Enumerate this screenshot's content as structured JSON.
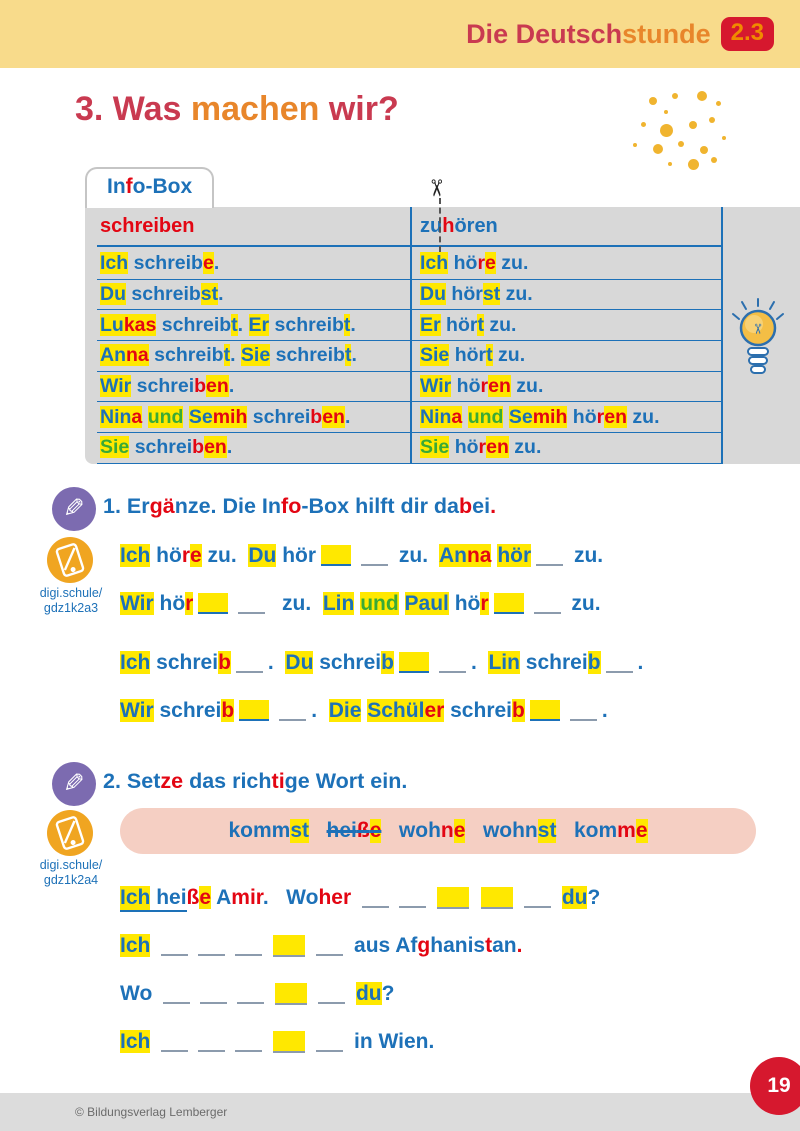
{
  "page": {
    "header": {
      "brand_segments": [
        {
          "t": "Die Deutsch",
          "c": "tr"
        },
        {
          "t": "stunde",
          "c": "to"
        }
      ],
      "badge": "2.3"
    },
    "title_segments": [
      {
        "t": "3. Was ",
        "c": "tr"
      },
      {
        "t": "machen ",
        "c": "to"
      },
      {
        "t": "wir?",
        "c": "tr"
      }
    ],
    "footer": {
      "copyright": "© Bildungsverlag Lemberger",
      "page_number": "19"
    }
  },
  "icons": {
    "scissors_glyph": "✂",
    "pencil_glyph": "✎",
    "lightbulb": "lightbulb-icon",
    "tablet": "tablet-link-icon"
  },
  "colors": {
    "blue": "#1D71B8",
    "red": "#E30613",
    "green": "#3AAA35",
    "yellow": "#FFE800",
    "titleRed": "#C93A50",
    "titleOrange": "#E8862B",
    "band": "#F8DB8B",
    "grayBox": "#D8D8D8",
    "pink": "#F5CFC3",
    "badgeRed": "#D6182E",
    "badgeOrange": "#F08A00",
    "blankLine": "#8C9BAD",
    "footerBar": "#DCDCDC",
    "footerText": "#6B6B6B",
    "dot": "#F0B42F",
    "purple": "#7C6BB0",
    "digiOrange": "#F0A521"
  },
  "infobox": {
    "tab_segments": [
      {
        "t": "In",
        "c": "b"
      },
      {
        "t": "f",
        "c": "r"
      },
      {
        "t": "o-Box",
        "c": "b"
      }
    ],
    "header": {
      "left": [
        {
          "t": "schreiben",
          "c": "r"
        }
      ],
      "right": [
        {
          "t": "zu",
          "c": "b"
        },
        {
          "t": "h",
          "c": "r"
        },
        {
          "t": "ören",
          "c": "b"
        }
      ]
    },
    "rows": [
      {
        "left": [
          {
            "t": "Ich",
            "c": "b",
            "h": 1
          },
          {
            "t": " schreib",
            "c": "b"
          },
          {
            "t": "e",
            "c": "r",
            "h": 1
          },
          {
            "t": ".",
            "c": "b"
          }
        ],
        "right": [
          {
            "t": "Ich",
            "c": "b",
            "h": 1
          },
          {
            "t": " hö",
            "c": "b"
          },
          {
            "t": "r",
            "c": "r"
          },
          {
            "t": "e",
            "c": "r",
            "h": 1
          },
          {
            "t": " zu.",
            "c": "b"
          }
        ]
      },
      {
        "left": [
          {
            "t": "Du",
            "c": "b",
            "h": 1
          },
          {
            "t": " schreib",
            "c": "b"
          },
          {
            "t": "st",
            "c": "b",
            "h": 1
          },
          {
            "t": ".",
            "c": "b"
          }
        ],
        "right": [
          {
            "t": "Du",
            "c": "b",
            "h": 1
          },
          {
            "t": " hör",
            "c": "b"
          },
          {
            "t": "st",
            "c": "b",
            "h": 1
          },
          {
            "t": " zu.",
            "c": "b"
          }
        ]
      },
      {
        "left": [
          {
            "t": "Lu",
            "c": "b",
            "h": 1
          },
          {
            "t": "kas",
            "c": "r",
            "h": 1
          },
          {
            "t": " schreib",
            "c": "b"
          },
          {
            "t": "t",
            "c": "b",
            "h": 1
          },
          {
            "t": ". ",
            "c": "b"
          },
          {
            "t": "Er",
            "c": "b",
            "h": 1
          },
          {
            "t": " schreib",
            "c": "b"
          },
          {
            "t": "t",
            "c": "b",
            "h": 1
          },
          {
            "t": ".",
            "c": "b"
          }
        ],
        "right": [
          {
            "t": "Er",
            "c": "b",
            "h": 1
          },
          {
            "t": " hör",
            "c": "b"
          },
          {
            "t": "t",
            "c": "b",
            "h": 1
          },
          {
            "t": " zu.",
            "c": "b"
          }
        ]
      },
      {
        "left": [
          {
            "t": "An",
            "c": "b",
            "h": 1
          },
          {
            "t": "na",
            "c": "r",
            "h": 1
          },
          {
            "t": " schreib",
            "c": "b"
          },
          {
            "t": "t",
            "c": "b",
            "h": 1
          },
          {
            "t": ". ",
            "c": "b"
          },
          {
            "t": "Sie",
            "c": "b",
            "h": 1
          },
          {
            "t": " schreib",
            "c": "b"
          },
          {
            "t": "t",
            "c": "b",
            "h": 1
          },
          {
            "t": ".",
            "c": "b"
          }
        ],
        "right": [
          {
            "t": "Sie",
            "c": "b",
            "h": 1
          },
          {
            "t": " hör",
            "c": "b"
          },
          {
            "t": "t",
            "c": "b",
            "h": 1
          },
          {
            "t": " zu.",
            "c": "b"
          }
        ]
      },
      {
        "left": [
          {
            "t": "Wir",
            "c": "b",
            "h": 1
          },
          {
            "t": " schrei",
            "c": "b"
          },
          {
            "t": "b",
            "c": "r"
          },
          {
            "t": "en",
            "c": "r",
            "h": 1
          },
          {
            "t": ".",
            "c": "b"
          }
        ],
        "right": [
          {
            "t": "Wir",
            "c": "b",
            "h": 1
          },
          {
            "t": " hö",
            "c": "b"
          },
          {
            "t": "r",
            "c": "r"
          },
          {
            "t": "en",
            "c": "r",
            "h": 1
          },
          {
            "t": " zu.",
            "c": "b"
          }
        ]
      },
      {
        "left": [
          {
            "t": "Nin",
            "c": "b",
            "h": 1
          },
          {
            "t": "a",
            "c": "r",
            "h": 1
          },
          {
            "t": " ",
            "c": "b"
          },
          {
            "t": "und",
            "c": "g",
            "h": 1
          },
          {
            "t": " ",
            "c": "b"
          },
          {
            "t": "Se",
            "c": "b",
            "h": 1
          },
          {
            "t": "mih",
            "c": "r",
            "h": 1
          },
          {
            "t": " schrei",
            "c": "b"
          },
          {
            "t": "b",
            "c": "r"
          },
          {
            "t": "en",
            "c": "r",
            "h": 1
          },
          {
            "t": ".",
            "c": "b"
          }
        ],
        "right": [
          {
            "t": "Nin",
            "c": "b",
            "h": 1
          },
          {
            "t": "a",
            "c": "r",
            "h": 1
          },
          {
            "t": " ",
            "c": "b"
          },
          {
            "t": "und",
            "c": "g",
            "h": 1
          },
          {
            "t": " ",
            "c": "b"
          },
          {
            "t": "Se",
            "c": "b",
            "h": 1
          },
          {
            "t": "mih",
            "c": "r",
            "h": 1
          },
          {
            "t": " hö",
            "c": "b"
          },
          {
            "t": "r",
            "c": "r"
          },
          {
            "t": "en",
            "c": "r",
            "h": 1
          },
          {
            "t": " zu.",
            "c": "b"
          }
        ]
      },
      {
        "left": [
          {
            "t": "Sie",
            "c": "g",
            "h": 1
          },
          {
            "t": " schrei",
            "c": "b"
          },
          {
            "t": "b",
            "c": "r"
          },
          {
            "t": "en",
            "c": "r",
            "h": 1
          },
          {
            "t": ".",
            "c": "b"
          }
        ],
        "right": [
          {
            "t": "Sie",
            "c": "g",
            "h": 1
          },
          {
            "t": " hö",
            "c": "b"
          },
          {
            "t": "r",
            "c": "r"
          },
          {
            "t": "en",
            "c": "r",
            "h": 1
          },
          {
            "t": " zu.",
            "c": "b"
          }
        ]
      }
    ]
  },
  "exercise1": {
    "heading_segments": [
      {
        "t": "1. Er",
        "c": "b"
      },
      {
        "t": "gä",
        "c": "r"
      },
      {
        "t": "nze. Die In",
        "c": "b"
      },
      {
        "t": "fo",
        "c": "r"
      },
      {
        "t": "-Box hilft dir da",
        "c": "b"
      },
      {
        "t": "b",
        "c": "r"
      },
      {
        "t": "ei",
        "c": "b"
      },
      {
        "t": ".",
        "c": "r"
      }
    ],
    "digi_link": {
      "line1": "digi.schule/",
      "line2": "gdz1k2a3"
    },
    "lines": [
      [
        {
          "t": "Ich",
          "c": "b",
          "h": 1
        },
        {
          "t": " hö",
          "c": "b"
        },
        {
          "t": "r",
          "c": "r"
        },
        {
          "t": "e",
          "c": "r",
          "h": 1
        },
        {
          "t": " zu.  ",
          "c": "b"
        },
        {
          "t": "Du",
          "c": "b",
          "h": 1
        },
        {
          "t": " hör",
          "c": "b"
        },
        {
          "bl": 1,
          "h": 1
        },
        {
          "bl": 1
        },
        {
          "t": " zu.  ",
          "c": "b"
        },
        {
          "t": "An",
          "c": "b",
          "h": 1
        },
        {
          "t": "na",
          "c": "r",
          "h": 1
        },
        {
          "t": " ",
          "c": "b"
        },
        {
          "t": "hör",
          "c": "b",
          "h": 1
        },
        {
          "bl": 1
        },
        {
          "t": " zu.",
          "c": "b"
        }
      ],
      [
        {
          "t": "Wir",
          "c": "b",
          "h": 1
        },
        {
          "t": " hö",
          "c": "b"
        },
        {
          "t": "r",
          "c": "r",
          "h": 1
        },
        {
          "bl": 1,
          "h": 1
        },
        {
          "bl": 1
        },
        {
          "t": "  zu.  ",
          "c": "b"
        },
        {
          "t": "Lin",
          "c": "b",
          "h": 1
        },
        {
          "t": " ",
          "c": "b"
        },
        {
          "t": "und",
          "c": "g",
          "h": 1
        },
        {
          "t": " ",
          "c": "b"
        },
        {
          "t": "Paul",
          "c": "b",
          "h": 1
        },
        {
          "t": " hö",
          "c": "b"
        },
        {
          "t": "r",
          "c": "r",
          "h": 1
        },
        {
          "bl": 1,
          "h": 1
        },
        {
          "bl": 1
        },
        {
          "t": " zu.",
          "c": "b"
        }
      ],
      [
        {
          "t": "Ich",
          "c": "b",
          "h": 1
        },
        {
          "t": " schrei",
          "c": "b"
        },
        {
          "t": "b",
          "c": "r",
          "h": 1
        },
        {
          "bl": 1
        },
        {
          "t": ".  ",
          "c": "b"
        },
        {
          "t": "Du",
          "c": "b",
          "h": 1
        },
        {
          "t": " schrei",
          "c": "b"
        },
        {
          "t": "b",
          "c": "b",
          "h": 1
        },
        {
          "bl": 1,
          "h": 1
        },
        {
          "bl": 1
        },
        {
          "t": ".  ",
          "c": "b"
        },
        {
          "t": "Lin",
          "c": "b",
          "h": 1
        },
        {
          "t": " schrei",
          "c": "b"
        },
        {
          "t": "b",
          "c": "b",
          "h": 1
        },
        {
          "bl": 1
        },
        {
          "t": ".",
          "c": "b"
        }
      ],
      [
        {
          "t": "Wir",
          "c": "b",
          "h": 1
        },
        {
          "t": " schrei",
          "c": "b"
        },
        {
          "t": "b",
          "c": "r",
          "h": 1
        },
        {
          "bl": 1,
          "h": 1
        },
        {
          "bl": 1
        },
        {
          "t": ".  ",
          "c": "b"
        },
        {
          "t": "Die",
          "c": "b",
          "h": 1
        },
        {
          "t": " ",
          "c": "b"
        },
        {
          "t": "Schül",
          "c": "b",
          "h": 1
        },
        {
          "t": "er",
          "c": "r",
          "h": 1
        },
        {
          "t": " schrei",
          "c": "b"
        },
        {
          "t": "b",
          "c": "r",
          "h": 1
        },
        {
          "bl": 1,
          "h": 1
        },
        {
          "bl": 1
        },
        {
          "t": ".",
          "c": "b"
        }
      ]
    ]
  },
  "exercise2": {
    "heading_segments": [
      {
        "t": "2. Set",
        "c": "b"
      },
      {
        "t": "ze",
        "c": "r"
      },
      {
        "t": " das rich",
        "c": "b"
      },
      {
        "t": "ti",
        "c": "r"
      },
      {
        "t": "ge Wort ein.",
        "c": "b"
      }
    ],
    "digi_link": {
      "line1": "digi.schule/",
      "line2": "gdz1k2a4"
    },
    "word_bank": [
      {
        "t": "komm",
        "c": "b"
      },
      {
        "t": "st",
        "c": "b",
        "h": 1
      },
      {
        "t": "   ",
        "c": "b"
      },
      {
        "t": "hei",
        "c": "b",
        "s": 1
      },
      {
        "t": "ß",
        "c": "r",
        "s": 1
      },
      {
        "t": "e",
        "c": "r",
        "h": 1,
        "s": 1
      },
      {
        "t": "   ",
        "c": "b"
      },
      {
        "t": "woh",
        "c": "b"
      },
      {
        "t": "n",
        "c": "r"
      },
      {
        "t": "e",
        "c": "r",
        "h": 1
      },
      {
        "t": "   ",
        "c": "b"
      },
      {
        "t": "wohn",
        "c": "b"
      },
      {
        "t": "st",
        "c": "b",
        "h": 1
      },
      {
        "t": "   ",
        "c": "b"
      },
      {
        "t": "kom",
        "c": "b"
      },
      {
        "t": "m",
        "c": "r"
      },
      {
        "t": "e",
        "c": "r",
        "h": 1
      }
    ],
    "lines": [
      [
        {
          "t": "Ich",
          "c": "b",
          "h": 1,
          "u": 1
        },
        {
          "t": " ",
          "c": "b",
          "u": 1
        },
        {
          "t": "hei",
          "c": "b",
          "u": 1
        },
        {
          "t": "ß",
          "c": "r"
        },
        {
          "t": "e",
          "c": "r",
          "h": 1
        },
        {
          "t": " ",
          "c": "b"
        },
        {
          "t": "A",
          "c": "b"
        },
        {
          "t": "mir",
          "c": "r"
        },
        {
          "t": ".   ",
          "c": "b"
        },
        {
          "t": "Wo",
          "c": "b"
        },
        {
          "t": "her",
          "c": "r"
        },
        {
          "t": " ",
          "c": "b"
        },
        {
          "bl": 1
        },
        {
          "bl": 1
        },
        {
          "bx": 1
        },
        {
          "bx": 1
        },
        {
          "bl": 1
        },
        {
          "t": " ",
          "c": "b"
        },
        {
          "t": "du",
          "c": "b",
          "h": 1
        },
        {
          "t": "?",
          "c": "b"
        }
      ],
      [
        {
          "t": "Ich",
          "c": "b",
          "h": 1
        },
        {
          "t": " ",
          "c": "b"
        },
        {
          "bl": 1
        },
        {
          "bl": 1
        },
        {
          "bl": 1
        },
        {
          "bx": 1
        },
        {
          "bl": 1
        },
        {
          "t": " aus Af",
          "c": "b"
        },
        {
          "t": "g",
          "c": "r"
        },
        {
          "t": "hanis",
          "c": "b"
        },
        {
          "t": "t",
          "c": "r"
        },
        {
          "t": "an",
          "c": "b"
        },
        {
          "t": ".",
          "c": "r"
        }
      ],
      [
        {
          "t": "Wo ",
          "c": "b"
        },
        {
          "bl": 1
        },
        {
          "bl": 1
        },
        {
          "bl": 1
        },
        {
          "bx": 1
        },
        {
          "bl": 1
        },
        {
          "t": " ",
          "c": "b"
        },
        {
          "t": "du",
          "c": "b",
          "h": 1
        },
        {
          "t": "?",
          "c": "b"
        }
      ],
      [
        {
          "t": "Ich",
          "c": "b",
          "h": 1
        },
        {
          "t": " ",
          "c": "b"
        },
        {
          "bl": 1
        },
        {
          "bl": 1
        },
        {
          "bl": 1
        },
        {
          "bx": 1
        },
        {
          "bl": 1
        },
        {
          "t": " in Wien.",
          "c": "b"
        }
      ]
    ]
  },
  "decor": {
    "dots": [
      [
        649,
        97,
        8
      ],
      [
        672,
        93,
        6
      ],
      [
        697,
        91,
        10
      ],
      [
        716,
        101,
        5
      ],
      [
        664,
        110,
        4
      ],
      [
        641,
        122,
        5
      ],
      [
        660,
        124,
        13
      ],
      [
        689,
        121,
        8
      ],
      [
        709,
        117,
        6
      ],
      [
        633,
        143,
        4
      ],
      [
        653,
        144,
        10
      ],
      [
        678,
        141,
        6
      ],
      [
        700,
        146,
        8
      ],
      [
        688,
        159,
        11
      ],
      [
        711,
        157,
        6
      ],
      [
        668,
        162,
        4
      ],
      [
        722,
        136,
        4
      ]
    ]
  }
}
